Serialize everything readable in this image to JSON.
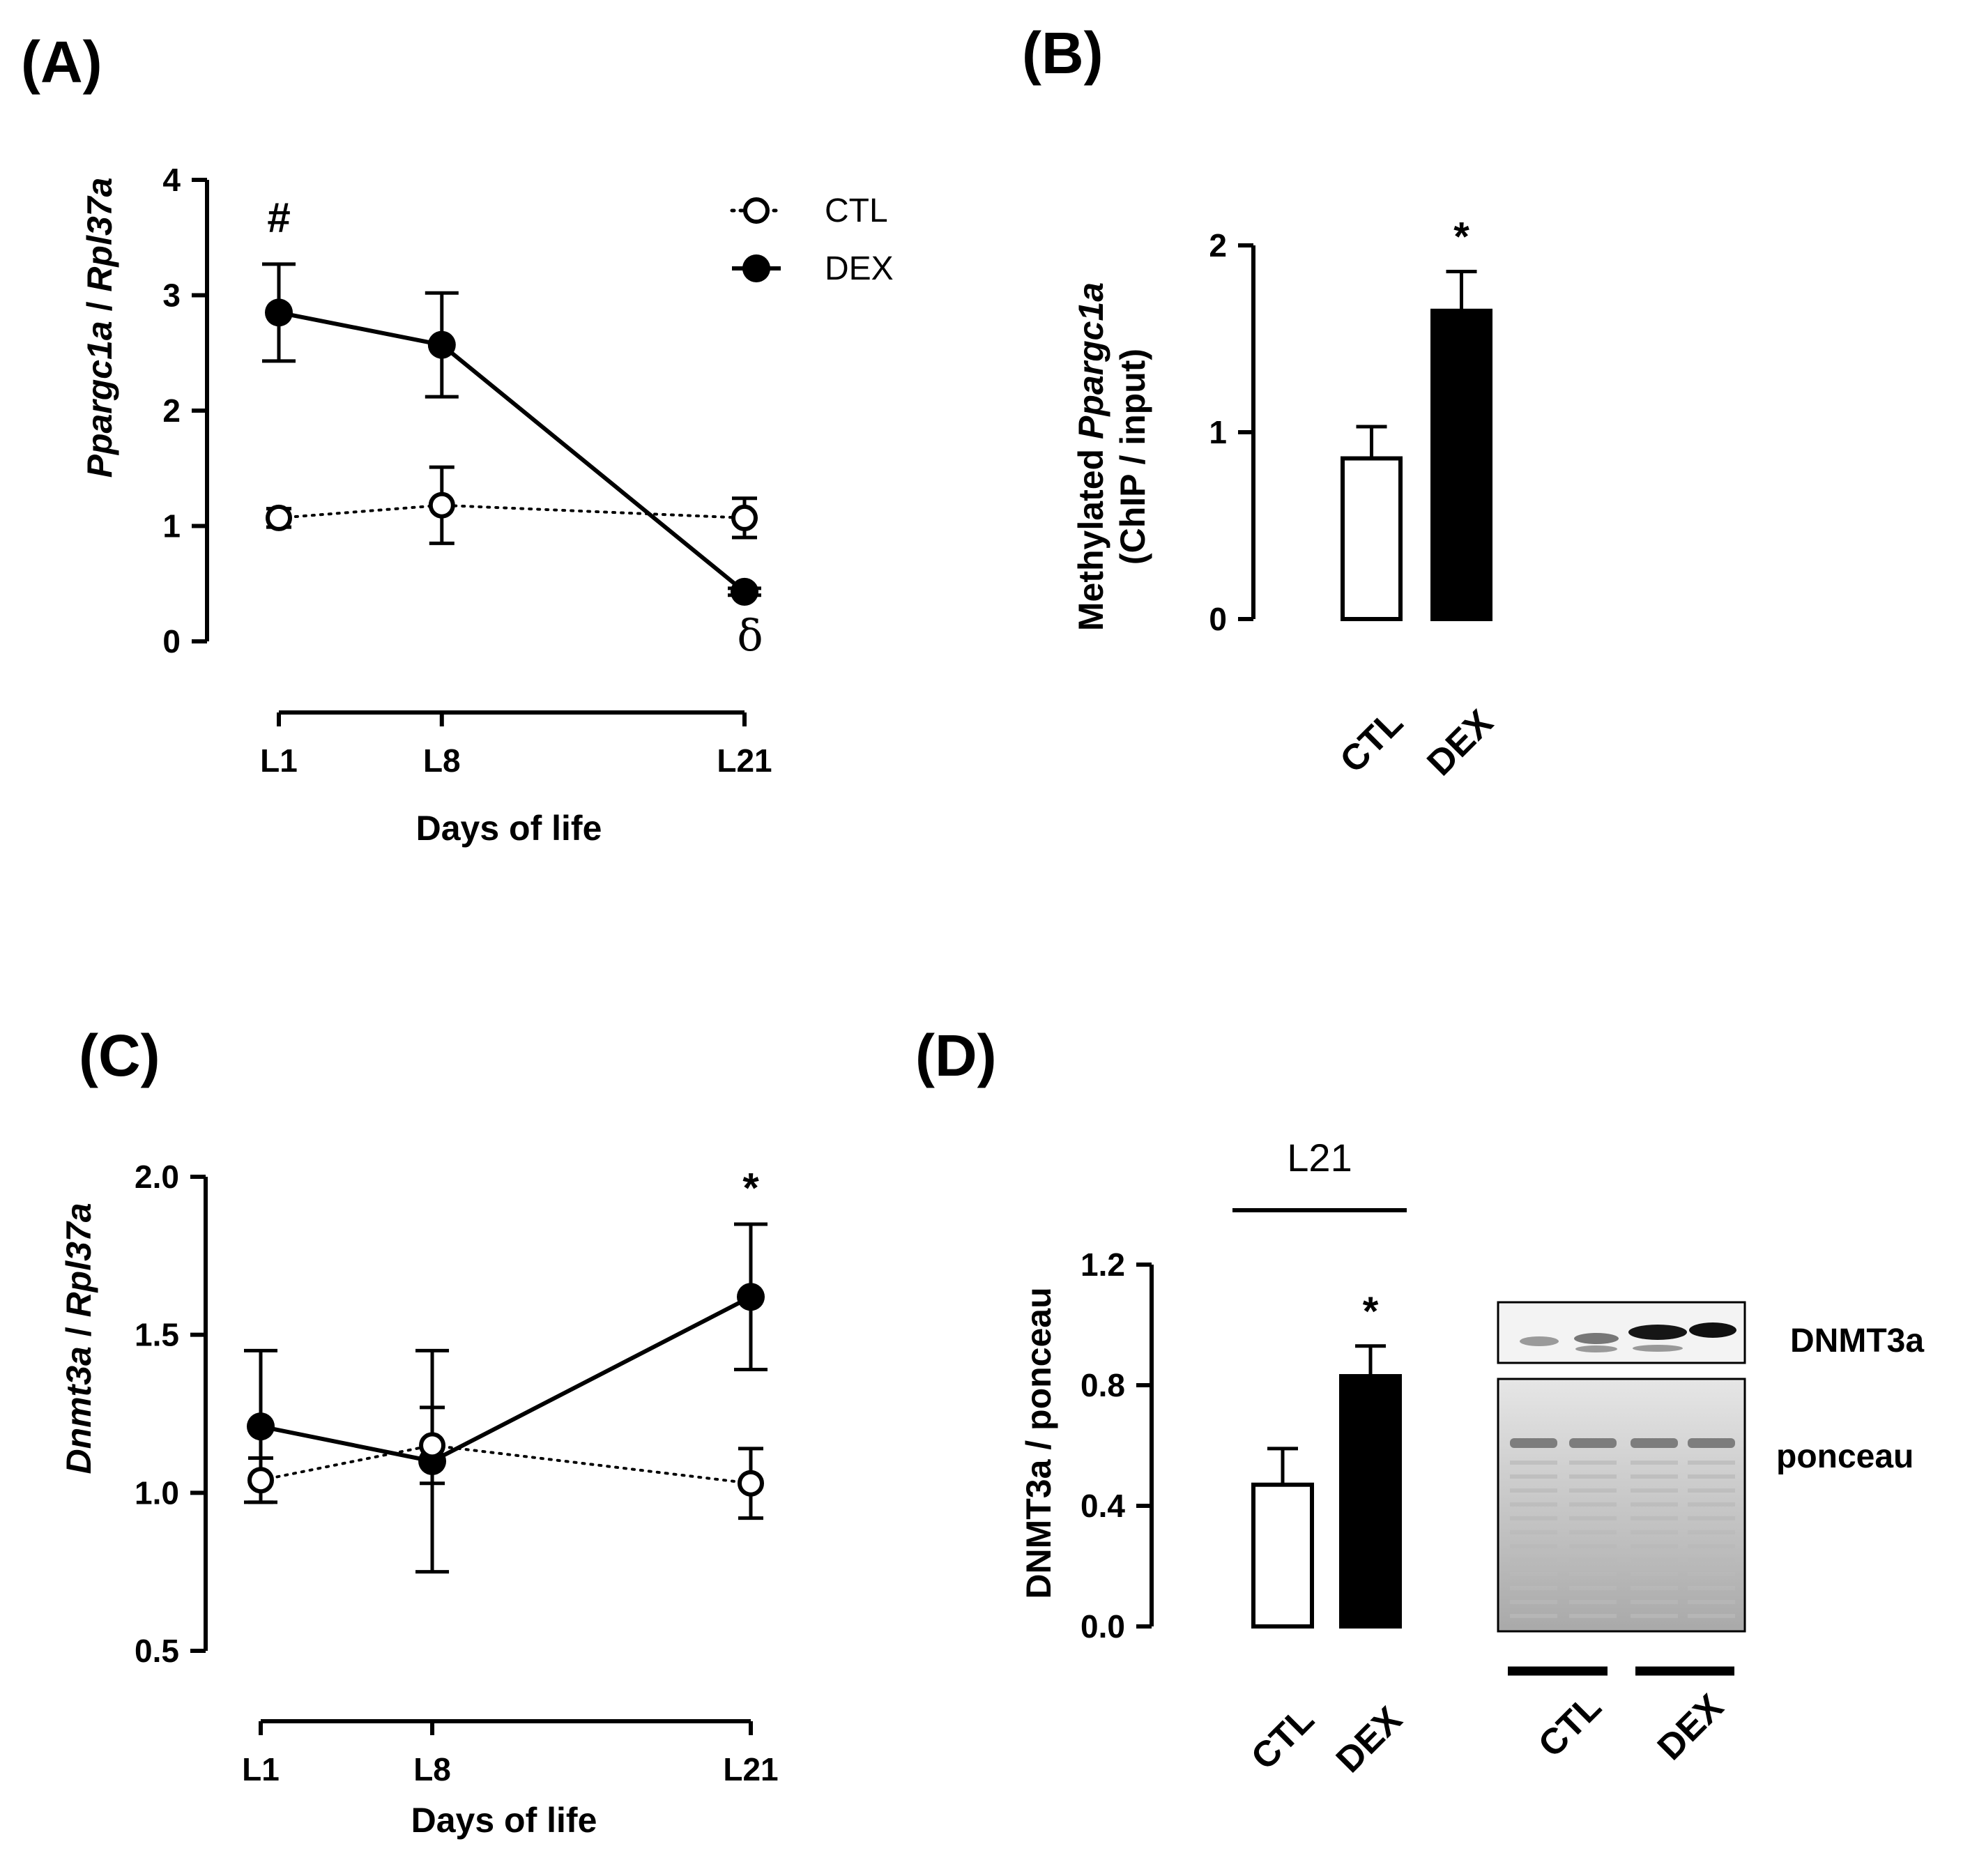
{
  "figure": {
    "panels": [
      "(A)",
      "(B)",
      "(C)",
      "(D)"
    ]
  },
  "legend": {
    "ctl": "CTL",
    "dex": "DEX"
  },
  "chart_data": [
    {
      "id": "A",
      "type": "line",
      "panel_label": "(A)",
      "ylabel_italic_1": "Ppargc1a",
      "ylabel_sep": " / ",
      "ylabel_italic_2": "Rpl37a",
      "xlabel": "Days of life",
      "categories": [
        "L1",
        "L8",
        "L21"
      ],
      "x_days": [
        1,
        8,
        21
      ],
      "ylim": [
        0,
        4
      ],
      "yticks": [
        "0",
        "1",
        "2",
        "3",
        "4"
      ],
      "series": [
        {
          "name": "CTL",
          "style": "open-circle-dotted",
          "values": [
            1.07,
            1.18,
            1.07
          ],
          "errors": [
            0.08,
            0.33,
            0.17
          ]
        },
        {
          "name": "DEX",
          "style": "filled-circle-solid",
          "values": [
            2.85,
            2.57,
            0.43
          ],
          "errors": [
            0.42,
            0.45,
            0.03
          ]
        }
      ],
      "annotations": [
        {
          "text": "#",
          "category": "L1",
          "y": 3.55
        },
        {
          "text": "δ",
          "category": "L21",
          "y": -0.08
        }
      ]
    },
    {
      "id": "B",
      "type": "bar",
      "panel_label": "(B)",
      "ylabel_line1_prefix": "Methylated ",
      "ylabel_line1_italic": "Ppargc1a",
      "ylabel_line2": "(ChIP / input)",
      "categories": [
        "CTL",
        "DEX"
      ],
      "values": [
        0.86,
        1.65
      ],
      "errors": [
        0.17,
        0.21
      ],
      "ylim": [
        0,
        2
      ],
      "yticks": [
        "0",
        "1",
        "2"
      ],
      "annotations": [
        {
          "text": "*",
          "category": "DEX"
        }
      ]
    },
    {
      "id": "C",
      "type": "line",
      "panel_label": "(C)",
      "ylabel_italic_1": "Dnmt3a",
      "ylabel_sep": " / ",
      "ylabel_italic_2": "Rpl37a",
      "xlabel": "Days of life",
      "categories": [
        "L1",
        "L8",
        "L21"
      ],
      "x_days": [
        1,
        8,
        21
      ],
      "ylim": [
        0.5,
        2.0
      ],
      "yticks": [
        "0.5",
        "1.0",
        "1.5",
        "2.0"
      ],
      "series": [
        {
          "name": "CTL",
          "style": "open-circle-dotted",
          "values": [
            1.04,
            1.15,
            1.03
          ],
          "errors": [
            0.07,
            0.12,
            0.11
          ]
        },
        {
          "name": "DEX",
          "style": "filled-circle-solid",
          "values": [
            1.21,
            1.1,
            1.62
          ],
          "errors": [
            0.24,
            0.35,
            0.23
          ]
        }
      ],
      "annotations": [
        {
          "text": "*",
          "category": "L21",
          "y": 1.92
        }
      ]
    },
    {
      "id": "D",
      "type": "bar",
      "panel_label": "(D)",
      "group_label": "L21",
      "ylabel": "DNMT3a / ponceau",
      "categories": [
        "CTL",
        "DEX"
      ],
      "values": [
        0.47,
        0.83
      ],
      "errors": [
        0.12,
        0.1
      ],
      "ylim": [
        0,
        1.2
      ],
      "yticks": [
        "0.0",
        "0.4",
        "0.8",
        "1.2"
      ],
      "annotations": [
        {
          "text": "*",
          "category": "DEX"
        }
      ],
      "blot": {
        "band_labels": [
          "DNMT3a",
          "ponceau"
        ],
        "lane_groups": [
          "CTL",
          "DEX"
        ]
      }
    }
  ]
}
